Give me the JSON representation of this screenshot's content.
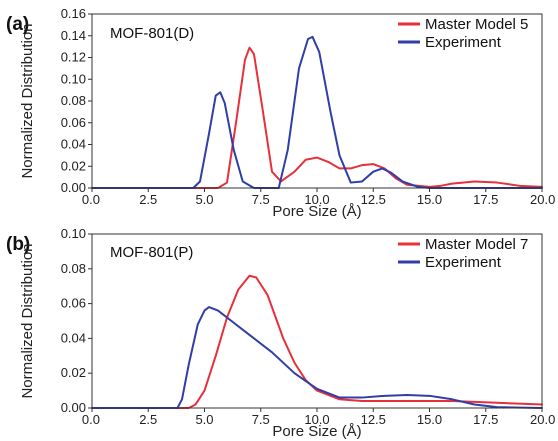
{
  "chart_data": [
    {
      "type": "line",
      "panel_label": "(a)",
      "annotation": "MOF-801(D)",
      "xlabel": "Pore Size (Å)",
      "ylabel": "Normalized Distribution",
      "xlim": [
        0.0,
        20.0
      ],
      "ylim": [
        0.0,
        0.16
      ],
      "x_ticks": [
        "0.0",
        "2.5",
        "5.0",
        "7.5",
        "10.0",
        "12.5",
        "15.0",
        "17.5",
        "20.0"
      ],
      "y_ticks": [
        "0.00",
        "0.02",
        "0.04",
        "0.06",
        "0.08",
        "0.10",
        "0.12",
        "0.14",
        "0.16"
      ],
      "grid": false,
      "legend_position": "top-right",
      "series": [
        {
          "name": "Master Model 5",
          "color": "#e8303a",
          "points": [
            [
              0.0,
              0.0
            ],
            [
              5.6,
              0.0
            ],
            [
              6.0,
              0.005
            ],
            [
              6.4,
              0.06
            ],
            [
              6.8,
              0.118
            ],
            [
              7.0,
              0.129
            ],
            [
              7.2,
              0.123
            ],
            [
              7.6,
              0.07
            ],
            [
              8.0,
              0.015
            ],
            [
              8.4,
              0.006
            ],
            [
              9.0,
              0.015
            ],
            [
              9.5,
              0.026
            ],
            [
              10.0,
              0.028
            ],
            [
              10.5,
              0.024
            ],
            [
              11.0,
              0.018
            ],
            [
              11.5,
              0.018
            ],
            [
              12.0,
              0.021
            ],
            [
              12.5,
              0.022
            ],
            [
              13.0,
              0.018
            ],
            [
              13.5,
              0.009
            ],
            [
              14.0,
              0.003
            ],
            [
              15.0,
              0.001
            ],
            [
              15.5,
              0.002
            ],
            [
              16.0,
              0.004
            ],
            [
              17.0,
              0.006
            ],
            [
              18.0,
              0.005
            ],
            [
              19.0,
              0.002
            ],
            [
              20.0,
              0.001
            ]
          ]
        },
        {
          "name": "Experiment",
          "color": "#2f3ea8",
          "points": [
            [
              0.0,
              0.0
            ],
            [
              4.5,
              0.0
            ],
            [
              4.8,
              0.006
            ],
            [
              5.2,
              0.05
            ],
            [
              5.5,
              0.085
            ],
            [
              5.7,
              0.088
            ],
            [
              5.9,
              0.078
            ],
            [
              6.3,
              0.035
            ],
            [
              6.7,
              0.006
            ],
            [
              7.2,
              0.0
            ],
            [
              8.3,
              0.0
            ],
            [
              8.7,
              0.035
            ],
            [
              9.2,
              0.11
            ],
            [
              9.6,
              0.137
            ],
            [
              9.8,
              0.139
            ],
            [
              10.1,
              0.125
            ],
            [
              10.6,
              0.07
            ],
            [
              11.0,
              0.03
            ],
            [
              11.5,
              0.005
            ],
            [
              12.0,
              0.006
            ],
            [
              12.5,
              0.015
            ],
            [
              12.9,
              0.018
            ],
            [
              13.3,
              0.014
            ],
            [
              13.8,
              0.006
            ],
            [
              14.5,
              0.001
            ],
            [
              15.0,
              0.0
            ],
            [
              20.0,
              0.0
            ]
          ]
        }
      ]
    },
    {
      "type": "line",
      "panel_label": "(b)",
      "annotation": "MOF-801(P)",
      "xlabel": "Pore Size (Å)",
      "ylabel": "Normalized Distribution",
      "xlim": [
        0.0,
        20.0
      ],
      "ylim": [
        0.0,
        0.1
      ],
      "x_ticks": [
        "0.0",
        "2.5",
        "5.0",
        "7.5",
        "10.0",
        "12.5",
        "15.0",
        "17.5",
        "20.0"
      ],
      "y_ticks": [
        "0.00",
        "0.02",
        "0.04",
        "0.06",
        "0.08",
        "0.10"
      ],
      "grid": false,
      "legend_position": "top-right",
      "series": [
        {
          "name": "Master Model 7",
          "color": "#e8303a",
          "points": [
            [
              0.0,
              0.0
            ],
            [
              4.3,
              0.0
            ],
            [
              4.6,
              0.002
            ],
            [
              5.0,
              0.01
            ],
            [
              5.5,
              0.03
            ],
            [
              6.0,
              0.052
            ],
            [
              6.5,
              0.068
            ],
            [
              7.0,
              0.076
            ],
            [
              7.3,
              0.075
            ],
            [
              7.8,
              0.065
            ],
            [
              8.5,
              0.04
            ],
            [
              9.0,
              0.026
            ],
            [
              9.5,
              0.016
            ],
            [
              10.0,
              0.01
            ],
            [
              11.0,
              0.005
            ],
            [
              12.0,
              0.004
            ],
            [
              14.0,
              0.004
            ],
            [
              16.0,
              0.004
            ],
            [
              18.0,
              0.003
            ],
            [
              20.0,
              0.002
            ]
          ]
        },
        {
          "name": "Experiment",
          "color": "#2f3ea8",
          "points": [
            [
              0.0,
              0.0
            ],
            [
              3.8,
              0.0
            ],
            [
              4.0,
              0.005
            ],
            [
              4.3,
              0.025
            ],
            [
              4.7,
              0.048
            ],
            [
              5.0,
              0.056
            ],
            [
              5.2,
              0.058
            ],
            [
              5.6,
              0.056
            ],
            [
              6.2,
              0.05
            ],
            [
              7.0,
              0.042
            ],
            [
              8.0,
              0.032
            ],
            [
              9.0,
              0.02
            ],
            [
              10.0,
              0.011
            ],
            [
              11.0,
              0.006
            ],
            [
              12.0,
              0.006
            ],
            [
              13.0,
              0.007
            ],
            [
              14.0,
              0.0075
            ],
            [
              15.0,
              0.007
            ],
            [
              16.0,
              0.005
            ],
            [
              17.0,
              0.002
            ],
            [
              18.0,
              0.0005
            ],
            [
              20.0,
              0.0
            ]
          ]
        }
      ]
    }
  ]
}
